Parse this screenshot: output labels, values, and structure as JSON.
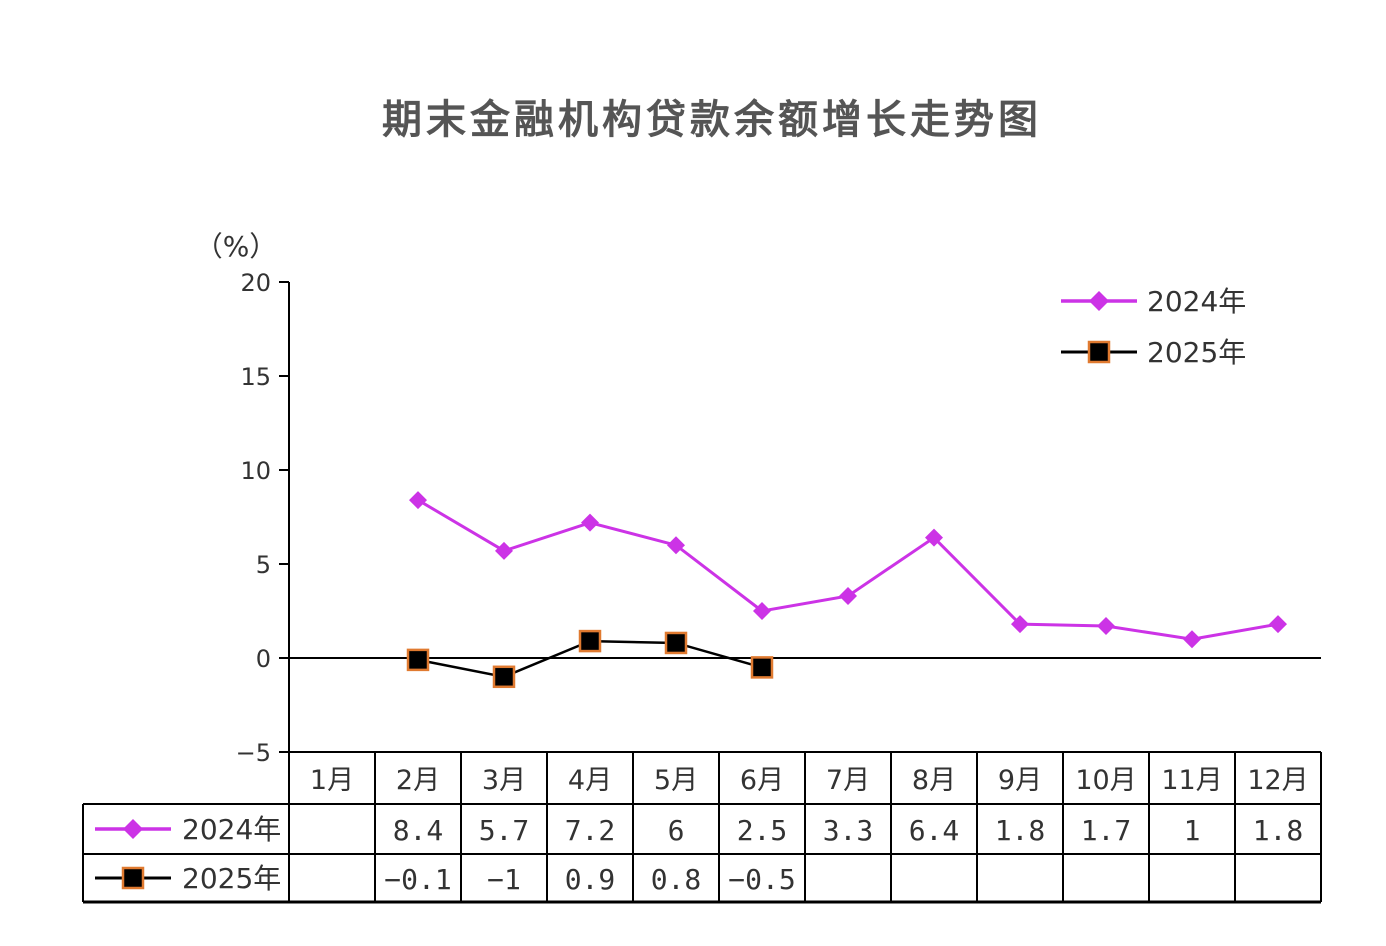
{
  "chart_data": {
    "type": "line",
    "title": "期末金融机构贷款余额增长走势图",
    "ylabel": "（%）",
    "xlabel": "",
    "ylim": [
      -5,
      20
    ],
    "yticks": [
      "20",
      "15",
      "10",
      "5",
      "0",
      "−5"
    ],
    "categories": [
      "1月",
      "2月",
      "3月",
      "4月",
      "5月",
      "6月",
      "7月",
      "8月",
      "9月",
      "10月",
      "11月",
      "12月"
    ],
    "grid": false,
    "legend_position": "top-right",
    "series": [
      {
        "name": "2024年",
        "color": "#cc33e6",
        "marker": "diamond",
        "values": [
          null,
          8.4,
          5.7,
          7.2,
          6,
          2.5,
          3.3,
          6.4,
          1.8,
          1.7,
          1,
          1.8
        ],
        "labels": [
          "",
          "8.4",
          "5.7",
          "7.2",
          "6",
          "2.5",
          "3.3",
          "6.4",
          "1.8",
          "1.7",
          "1",
          "1.8"
        ]
      },
      {
        "name": "2025年",
        "color": "#000000",
        "marker": "square",
        "marker_edge": "#e07a30",
        "values": [
          null,
          -0.1,
          -1,
          0.9,
          0.8,
          -0.5,
          null,
          null,
          null,
          null,
          null,
          null
        ],
        "labels": [
          "",
          "−0.1",
          "−1",
          "0.9",
          "0.8",
          "−0.5",
          "",
          "",
          "",
          "",
          "",
          ""
        ]
      }
    ]
  }
}
